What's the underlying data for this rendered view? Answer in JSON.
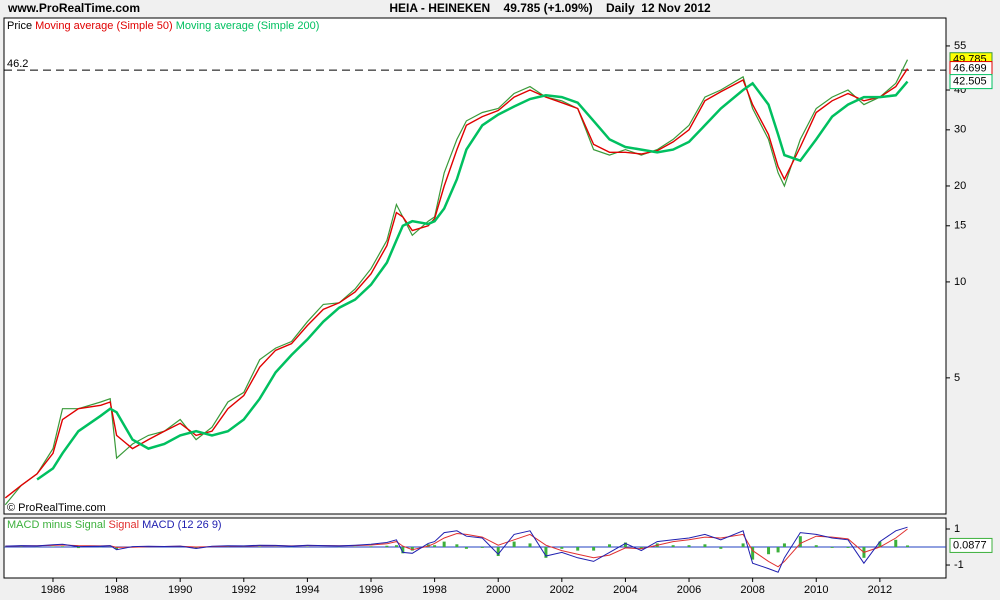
{
  "header": {
    "watermark": "www.ProRealTime.com",
    "title": "HEIA - HEINEKEN    49.785 (+1.09%)    Daily  12 Nov 2012"
  },
  "footer": {
    "copyright": "© ProRealTime.com"
  },
  "chart_data": [
    {
      "type": "line",
      "log_scale": true,
      "x": [
        1984.5,
        1985,
        1985.5,
        1986,
        1986.3,
        1986.8,
        1987.5,
        1987.8,
        1988,
        1988.5,
        1989,
        1989.5,
        1990,
        1990.5,
        1991,
        1991.5,
        1992,
        1992.5,
        1993,
        1993.5,
        1994,
        1994.5,
        1995,
        1995.5,
        1996,
        1996.5,
        1996.8,
        1997,
        1997.3,
        1997.8,
        1998,
        1998.3,
        1998.7,
        1999,
        1999.5,
        2000,
        2000.5,
        2001,
        2001.5,
        2002,
        2002.5,
        2003,
        2003.5,
        2004,
        2004.5,
        2005,
        2005.5,
        2006,
        2006.5,
        2007,
        2007.7,
        2008,
        2008.5,
        2008.8,
        2009,
        2009.5,
        2010,
        2010.5,
        2011,
        2011.5,
        2012,
        2012.5,
        2012.87
      ],
      "xlim": [
        1984.46,
        2014.08
      ],
      "ylim": [
        1.87,
        67.3
      ],
      "yticks": [
        5,
        10,
        15,
        20,
        30,
        40,
        55
      ],
      "hline": 46.2,
      "series": [
        {
          "name": "Price",
          "color": "#3a9a3a",
          "values": [
            2.0,
            2.3,
            2.5,
            3.0,
            4.0,
            4.0,
            4.2,
            4.3,
            2.8,
            3.1,
            3.3,
            3.4,
            3.7,
            3.2,
            3.5,
            4.2,
            4.5,
            5.7,
            6.2,
            6.5,
            7.5,
            8.5,
            8.6,
            9.5,
            11,
            13.5,
            17.5,
            16,
            14,
            15.5,
            16,
            22,
            28,
            32,
            34,
            35,
            39,
            41,
            38,
            37,
            35,
            26,
            25,
            26,
            25,
            26,
            28,
            31,
            38,
            40,
            44,
            35,
            28,
            22,
            20,
            28,
            35,
            38,
            40,
            36,
            38,
            42,
            49.785
          ]
        },
        {
          "name": "Moving average (Simple 50)",
          "color": "#e00000",
          "values": [
            2.1,
            2.3,
            2.5,
            2.9,
            3.7,
            4.0,
            4.1,
            4.2,
            3.3,
            3.0,
            3.2,
            3.4,
            3.6,
            3.3,
            3.4,
            4.0,
            4.4,
            5.4,
            6.1,
            6.4,
            7.3,
            8.2,
            8.6,
            9.3,
            10.6,
            13,
            16.5,
            16,
            14.5,
            15,
            15.8,
            20,
            26,
            31,
            33,
            34.5,
            38,
            40,
            38,
            36.5,
            35,
            27,
            25.5,
            25.5,
            25.2,
            25.8,
            27.5,
            30,
            37,
            39.5,
            43,
            36,
            29,
            23,
            21,
            26.5,
            34,
            37,
            39,
            37,
            38,
            41,
            46.699
          ]
        },
        {
          "name": "Moving average (Simple 200)",
          "color": "#00c060",
          "values": [
            null,
            null,
            2.4,
            2.6,
            2.9,
            3.4,
            3.8,
            4.0,
            3.9,
            3.2,
            3.0,
            3.1,
            3.3,
            3.4,
            3.3,
            3.4,
            3.7,
            4.3,
            5.2,
            5.9,
            6.6,
            7.5,
            8.3,
            8.8,
            9.8,
            11.5,
            13.5,
            15,
            15.5,
            15.2,
            15.5,
            17,
            21,
            26,
            31,
            33.5,
            35.5,
            37.5,
            38.5,
            38,
            36.5,
            32,
            28,
            26.5,
            26,
            25.5,
            26,
            27.5,
            31,
            35,
            40,
            42,
            36,
            29,
            25,
            24,
            28,
            33,
            36,
            38,
            38,
            38.5,
            42.505
          ]
        }
      ]
    },
    {
      "type": "line",
      "x": [
        1984.5,
        1985,
        1985.5,
        1986,
        1986.3,
        1986.8,
        1987.5,
        1987.8,
        1988,
        1988.5,
        1989,
        1989.5,
        1990,
        1990.5,
        1991,
        1991.5,
        1992,
        1992.5,
        1993,
        1993.5,
        1994,
        1994.5,
        1995,
        1995.5,
        1996,
        1996.5,
        1996.8,
        1997,
        1997.3,
        1997.8,
        1998,
        1998.3,
        1998.7,
        1999,
        1999.5,
        2000,
        2000.5,
        2001,
        2001.5,
        2002,
        2002.5,
        2003,
        2003.5,
        2004,
        2004.5,
        2005,
        2005.5,
        2006,
        2006.5,
        2007,
        2007.7,
        2008,
        2008.5,
        2008.8,
        2009,
        2009.5,
        2010,
        2010.5,
        2011,
        2011.5,
        2012,
        2012.5,
        2012.87
      ],
      "xlim": [
        1984.46,
        2014.08
      ],
      "xticks": [
        1986,
        1988,
        1990,
        1992,
        1994,
        1996,
        1998,
        2000,
        2002,
        2004,
        2006,
        2008,
        2010,
        2012
      ],
      "ylim": [
        -1.72,
        1.61
      ],
      "yticks": [
        -1,
        1
      ],
      "series": [
        {
          "name": "MACD minus Signal",
          "type": "bar",
          "color": "#3cb03c",
          "values": [
            0.01,
            0.02,
            -0.01,
            0.03,
            0.04,
            -0.06,
            -0.01,
            0.01,
            -0.13,
            0.03,
            0.02,
            0,
            0.01,
            -0.08,
            0.02,
            0.03,
            0.01,
            0.03,
            0.01,
            -0.01,
            0.02,
            0,
            -0.01,
            0.02,
            0.04,
            0.07,
            0.1,
            -0.35,
            -0.2,
            0.15,
            0.1,
            0.3,
            0.15,
            -0.1,
            -0.05,
            -0.5,
            0.3,
            0.2,
            -0.6,
            -0.1,
            -0.2,
            -0.2,
            0.15,
            0.25,
            -0.1,
            0.2,
            0.1,
            0.1,
            0.15,
            -0.1,
            0.2,
            -0.7,
            -0.4,
            -0.3,
            0.2,
            0.6,
            0.1,
            -0.05,
            -0.05,
            -0.6,
            0.3,
            0.4,
            0.0877
          ]
        },
        {
          "name": "Signal",
          "color": "#e03030",
          "values": [
            0.04,
            0.06,
            0.07,
            0.09,
            0.11,
            0.08,
            0.06,
            0.07,
            -0.02,
            -0.01,
            0.02,
            0.03,
            0.04,
            0.0,
            0.02,
            0.04,
            0.05,
            0.07,
            0.08,
            0.06,
            0.08,
            0.08,
            0.07,
            0.08,
            0.11,
            0.18,
            0.3,
            0.05,
            -0.15,
            0.05,
            0.2,
            0.5,
            0.75,
            0.7,
            0.55,
            0.1,
            0.4,
            0.7,
            0.1,
            -0.2,
            -0.4,
            -0.6,
            -0.45,
            -0.05,
            -0.1,
            0.1,
            0.3,
            0.4,
            0.55,
            0.5,
            0.7,
            -0.2,
            -0.8,
            -1.1,
            -0.8,
            0.2,
            0.6,
            0.55,
            0.45,
            -0.3,
            0.0,
            0.5,
            1.0
          ]
        },
        {
          "name": "MACD (12 26 9)",
          "color": "#2020b0",
          "values": [
            0.05,
            0.08,
            0.06,
            0.12,
            0.15,
            0.02,
            0.05,
            0.08,
            -0.15,
            0.02,
            0.04,
            0.03,
            0.05,
            -0.08,
            0.04,
            0.07,
            0.06,
            0.1,
            0.09,
            0.05,
            0.1,
            0.08,
            0.06,
            0.1,
            0.15,
            0.25,
            0.4,
            -0.3,
            -0.35,
            0.2,
            0.3,
            0.8,
            0.9,
            0.6,
            0.5,
            -0.4,
            0.7,
            0.9,
            -0.5,
            -0.3,
            -0.6,
            -0.8,
            -0.3,
            0.2,
            -0.2,
            0.3,
            0.4,
            0.5,
            0.7,
            0.4,
            0.9,
            -0.9,
            -1.2,
            -1.4,
            -0.6,
            0.8,
            0.7,
            0.5,
            0.4,
            -0.9,
            0.3,
            0.9,
            1.1
          ]
        }
      ]
    }
  ]
}
